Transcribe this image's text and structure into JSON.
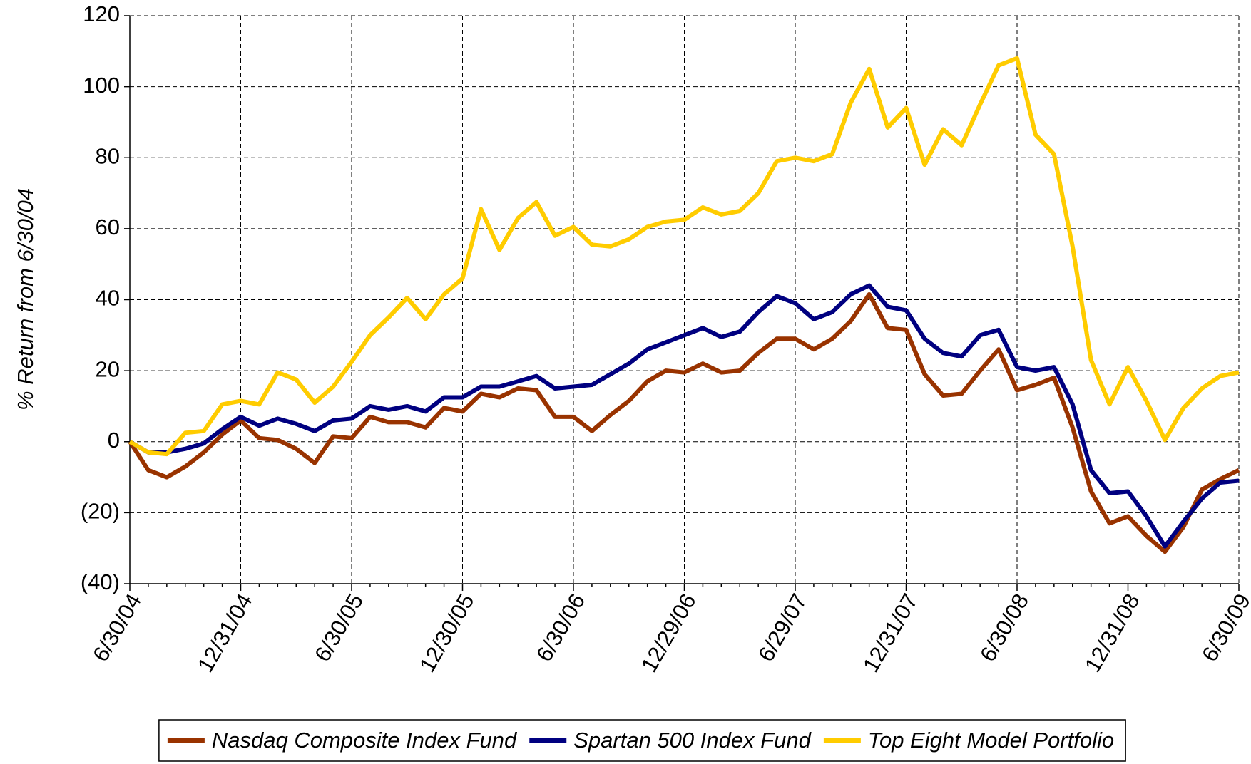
{
  "chart_data": {
    "type": "line",
    "y_label": "% Return from 6/30/04",
    "categories": [
      "6/30/04",
      null,
      null,
      null,
      null,
      null,
      "12/31/04",
      null,
      null,
      null,
      null,
      null,
      "6/30/05",
      null,
      null,
      null,
      null,
      null,
      "12/30/05",
      null,
      null,
      null,
      null,
      null,
      "6/30/06",
      null,
      null,
      null,
      null,
      null,
      "12/29/06",
      null,
      null,
      null,
      null,
      null,
      "6/29/07",
      null,
      null,
      null,
      null,
      null,
      "12/31/07",
      null,
      null,
      null,
      null,
      null,
      "6/30/08",
      null,
      null,
      null,
      null,
      null,
      "12/31/08",
      null,
      null,
      null,
      null,
      null,
      "6/30/09"
    ],
    "series": [
      {
        "name": "Nasdaq Composite Index Fund",
        "color": "#993300",
        "values": [
          0,
          -8,
          -10,
          -7,
          -3,
          2,
          6,
          1,
          0.5,
          -2,
          -6,
          1.5,
          1,
          7,
          5.5,
          5.5,
          4,
          9.5,
          8.5,
          13.5,
          12.5,
          15,
          14.5,
          7,
          7,
          3,
          7.5,
          11.5,
          17,
          20,
          19.5,
          22,
          19.5,
          20,
          25,
          29,
          29,
          26,
          29,
          34,
          41.5,
          32,
          31.5,
          19,
          13,
          13.5,
          20,
          26,
          14.5,
          16,
          18,
          4,
          -14,
          -23,
          -21,
          -26.5,
          -31,
          -24,
          -13.5,
          -10.5,
          -8
        ]
      },
      {
        "name": "Spartan 500 Index Fund",
        "color": "#000080",
        "values": [
          0,
          -3,
          -3,
          -2,
          -0.5,
          3.5,
          7,
          4.5,
          6.5,
          5,
          3,
          6,
          6.5,
          10,
          9,
          10,
          8.5,
          12.5,
          12.5,
          15.5,
          15.5,
          17,
          18.5,
          15,
          15.5,
          16,
          19,
          22,
          26,
          28,
          30,
          32,
          29.5,
          31,
          36.5,
          41,
          39,
          34.5,
          36.5,
          41.5,
          44,
          38,
          37,
          29,
          25,
          24,
          30,
          31.5,
          21,
          20,
          21,
          10.5,
          -8,
          -14.5,
          -14,
          -21,
          -29.5,
          -22.5,
          -16,
          -11.5,
          -11
        ]
      },
      {
        "name": "Top Eight Model Portfolio",
        "color": "#ffcc00",
        "values": [
          0,
          -3,
          -3.5,
          2.5,
          3,
          10.5,
          11.5,
          10.5,
          19.5,
          17.5,
          11,
          15.5,
          22.5,
          30,
          35,
          40.5,
          34.5,
          41.5,
          46,
          65.5,
          54,
          63,
          67.5,
          58,
          60.5,
          55.5,
          55,
          57,
          60.5,
          62,
          62.5,
          66,
          64,
          65,
          70,
          79,
          80,
          79,
          81,
          95.5,
          105,
          88.5,
          94,
          78,
          88,
          83.5,
          95,
          106,
          108,
          86.5,
          81,
          55,
          23,
          10.5,
          21,
          11.5,
          0.5,
          9.5,
          15,
          18.5,
          19.5
        ]
      }
    ],
    "ylim": [
      -40,
      120
    ],
    "yticks": [
      {
        "value": -40,
        "label": "(40)"
      },
      {
        "value": -20,
        "label": "(20)"
      },
      0,
      20,
      40,
      60,
      80,
      100,
      120
    ],
    "negative_tick_color": "#ff0000",
    "grid": true,
    "legend": "bottom"
  }
}
